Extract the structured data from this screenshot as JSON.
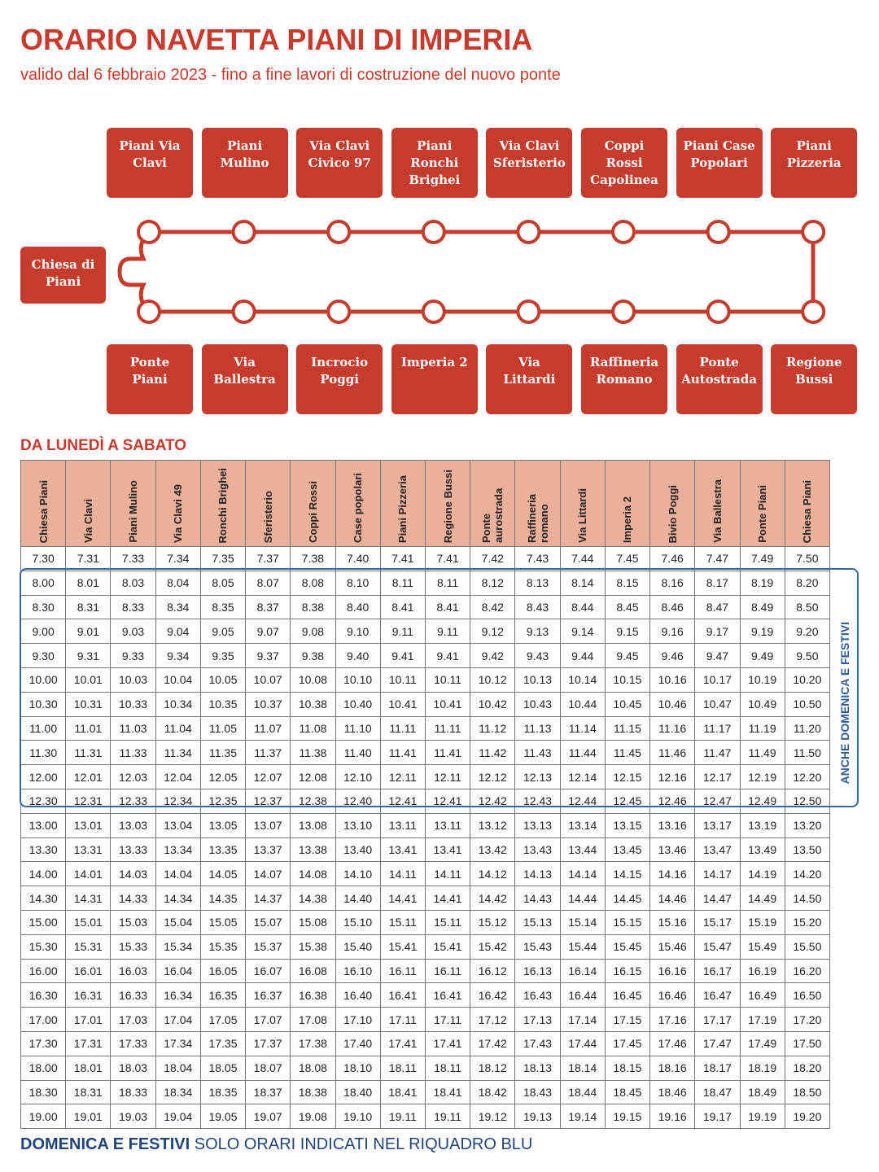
{
  "header": {
    "title": "ORARIO NAVETTA PIANI DI IMPERIA",
    "subtitle": "valido dal 6 febbraio 2023 - fino a fine lavori di costruzione del nuovo ponte"
  },
  "route": {
    "top_stops": [
      "Piani Via Clavi",
      "Piani Mulino",
      "Via Clavi Civico 97",
      "Piani Ronchi Brighei",
      "Via Clavi Sferisterio",
      "Coppi Rossi Capolinea",
      "Piani Case Popolari",
      "Piani Pizzeria"
    ],
    "terminus": "Chiesa di Piani",
    "bottom_stops": [
      "Ponte Piani",
      "Via Ballestra",
      "Incrocio Poggi",
      "Imperia 2",
      "Via Littardi",
      "Raffineria Romano",
      "Ponte Autostrada",
      "Regione Bussi"
    ]
  },
  "section_title": "DA LUNEDÌ A SABATO",
  "table": {
    "columns": [
      "Chiesa Piani",
      "Via Clavi",
      "Piani Mulino",
      "Via Clavi 49",
      "Ronchi Brighei",
      "Sferisterio",
      "Coppi Rossi",
      "Case popolari",
      "Piani Pizzeria",
      "Regione Bussi",
      "Ponte aurostrada",
      "Raffineria romano",
      "Via Littardi",
      "Imperia 2",
      "Bivio Poggi",
      "Via Ballestra",
      "Ponte Piani",
      "Chiesa Piani"
    ],
    "rows": [
      [
        "7.30",
        "7.31",
        "7.33",
        "7.34",
        "7.35",
        "7.37",
        "7.38",
        "7.40",
        "7.41",
        "7.41",
        "7.42",
        "7.43",
        "7.44",
        "7.45",
        "7.46",
        "7.47",
        "7.49",
        "7.50"
      ],
      [
        "8.00",
        "8.01",
        "8.03",
        "8.04",
        "8.05",
        "8.07",
        "8.08",
        "8.10",
        "8.11",
        "8.11",
        "8.12",
        "8.13",
        "8.14",
        "8.15",
        "8.16",
        "8.17",
        "8.19",
        "8.20"
      ],
      [
        "8.30",
        "8.31",
        "8.33",
        "8.34",
        "8.35",
        "8.37",
        "8.38",
        "8.40",
        "8.41",
        "8.41",
        "8.42",
        "8.43",
        "8.44",
        "8.45",
        "8.46",
        "8.47",
        "8.49",
        "8.50"
      ],
      [
        "9.00",
        "9.01",
        "9.03",
        "9.04",
        "9.05",
        "9.07",
        "9.08",
        "9.10",
        "9.11",
        "9.11",
        "9.12",
        "9.13",
        "9.14",
        "9.15",
        "9.16",
        "9.17",
        "9.19",
        "9.20"
      ],
      [
        "9.30",
        "9.31",
        "9.33",
        "9.34",
        "9.35",
        "9.37",
        "9.38",
        "9.40",
        "9.41",
        "9.41",
        "9.42",
        "9.43",
        "9.44",
        "9.45",
        "9.46",
        "9.47",
        "9.49",
        "9.50"
      ],
      [
        "10.00",
        "10.01",
        "10.03",
        "10.04",
        "10.05",
        "10.07",
        "10.08",
        "10.10",
        "10.11",
        "10.11",
        "10.12",
        "10.13",
        "10.14",
        "10.15",
        "10.16",
        "10.17",
        "10.19",
        "10.20"
      ],
      [
        "10.30",
        "10.31",
        "10.33",
        "10.34",
        "10.35",
        "10.37",
        "10.38",
        "10.40",
        "10.41",
        "10.41",
        "10.42",
        "10.43",
        "10.44",
        "10.45",
        "10.46",
        "10.47",
        "10.49",
        "10.50"
      ],
      [
        "11.00",
        "11.01",
        "11.03",
        "11.04",
        "11.05",
        "11.07",
        "11.08",
        "11.10",
        "11.11",
        "11.11",
        "11.12",
        "11.13",
        "11.14",
        "11.15",
        "11.16",
        "11.17",
        "11.19",
        "11.20"
      ],
      [
        "11.30",
        "11.31",
        "11.33",
        "11.34",
        "11.35",
        "11.37",
        "11.38",
        "11.40",
        "11.41",
        "11.41",
        "11.42",
        "11.43",
        "11.44",
        "11.45",
        "11.46",
        "11.47",
        "11.49",
        "11.50"
      ],
      [
        "12.00",
        "12.01",
        "12.03",
        "12.04",
        "12.05",
        "12.07",
        "12.08",
        "12.10",
        "12.11",
        "12.11",
        "12.12",
        "12.13",
        "12.14",
        "12.15",
        "12.16",
        "12.17",
        "12.19",
        "12.20"
      ],
      [
        "12.30",
        "12.31",
        "12.33",
        "12.34",
        "12.35",
        "12.37",
        "12.38",
        "12.40",
        "12.41",
        "12.41",
        "12.42",
        "12.43",
        "12.44",
        "12.45",
        "12.46",
        "12.47",
        "12.49",
        "12.50"
      ],
      [
        "13.00",
        "13.01",
        "13.03",
        "13.04",
        "13.05",
        "13.07",
        "13.08",
        "13.10",
        "13.11",
        "13.11",
        "13.12",
        "13.13",
        "13.14",
        "13.15",
        "13.16",
        "13.17",
        "13.19",
        "13.20"
      ],
      [
        "13.30",
        "13.31",
        "13.33",
        "13.34",
        "13.35",
        "13.37",
        "13.38",
        "13.40",
        "13.41",
        "13.41",
        "13.42",
        "13.43",
        "13.44",
        "13.45",
        "13.46",
        "13.47",
        "13.49",
        "13.50"
      ],
      [
        "14.00",
        "14.01",
        "14.03",
        "14.04",
        "14.05",
        "14.07",
        "14.08",
        "14.10",
        "14.11",
        "14.11",
        "14.12",
        "14.13",
        "14.14",
        "14.15",
        "14.16",
        "14.17",
        "14.19",
        "14.20"
      ],
      [
        "14.30",
        "14.31",
        "14.33",
        "14.34",
        "14.35",
        "14.37",
        "14.38",
        "14.40",
        "14.41",
        "14.41",
        "14.42",
        "14.43",
        "14.44",
        "14.45",
        "14.46",
        "14.47",
        "14.49",
        "14.50"
      ],
      [
        "15.00",
        "15.01",
        "15.03",
        "15.04",
        "15.05",
        "15.07",
        "15.08",
        "15.10",
        "15.11",
        "15.11",
        "15.12",
        "15.13",
        "15.14",
        "15.15",
        "15.16",
        "15.17",
        "15.19",
        "15.20"
      ],
      [
        "15.30",
        "15.31",
        "15.33",
        "15.34",
        "15.35",
        "15.37",
        "15.38",
        "15.40",
        "15.41",
        "15.41",
        "15.42",
        "15.43",
        "15.44",
        "15.45",
        "15.46",
        "15.47",
        "15.49",
        "15.50"
      ],
      [
        "16.00",
        "16.01",
        "16.03",
        "16.04",
        "16.05",
        "16.07",
        "16.08",
        "16.10",
        "16.11",
        "16.11",
        "16.12",
        "16.13",
        "16.14",
        "16.15",
        "16.16",
        "16.17",
        "16.19",
        "16.20"
      ],
      [
        "16.30",
        "16.31",
        "16.33",
        "16.34",
        "16.35",
        "16.37",
        "16.38",
        "16.40",
        "16.41",
        "16.41",
        "16.42",
        "16.43",
        "16.44",
        "16.45",
        "16.46",
        "16.47",
        "16.49",
        "16.50"
      ],
      [
        "17.00",
        "17.01",
        "17.03",
        "17.04",
        "17.05",
        "17.07",
        "17.08",
        "17.10",
        "17.11",
        "17.11",
        "17.12",
        "17.13",
        "17.14",
        "17.15",
        "17.16",
        "17.17",
        "17.19",
        "17.20"
      ],
      [
        "17.30",
        "17.31",
        "17.33",
        "17.34",
        "17.35",
        "17.37",
        "17.38",
        "17.40",
        "17.41",
        "17.41",
        "17.42",
        "17.43",
        "17.44",
        "17.45",
        "17.46",
        "17.47",
        "17.49",
        "17.50"
      ],
      [
        "18.00",
        "18.01",
        "18.03",
        "18.04",
        "18.05",
        "18.07",
        "18.08",
        "18.10",
        "18.11",
        "18.11",
        "18.12",
        "18.13",
        "18.14",
        "18.15",
        "18.16",
        "18.17",
        "18.19",
        "18.20"
      ],
      [
        "18.30",
        "18.31",
        "18.33",
        "18.34",
        "18.35",
        "18.37",
        "18.38",
        "18.40",
        "18.41",
        "18.41",
        "18.42",
        "18.43",
        "18.44",
        "18.45",
        "18.46",
        "18.47",
        "18.49",
        "18.50"
      ],
      [
        "19.00",
        "19.01",
        "19.03",
        "19.04",
        "19.05",
        "19.07",
        "19.08",
        "19.10",
        "19.11",
        "19.11",
        "19.12",
        "19.13",
        "19.14",
        "19.15",
        "19.16",
        "19.17",
        "19.19",
        "19.20"
      ]
    ],
    "holiday_label": "ANCHE DOMENICA E FESTIVI"
  },
  "footer": {
    "bold": "DOMENICA E FESTIVI",
    "text": "SOLO ORARI INDICATI NEL RIQUADRO BLU"
  }
}
